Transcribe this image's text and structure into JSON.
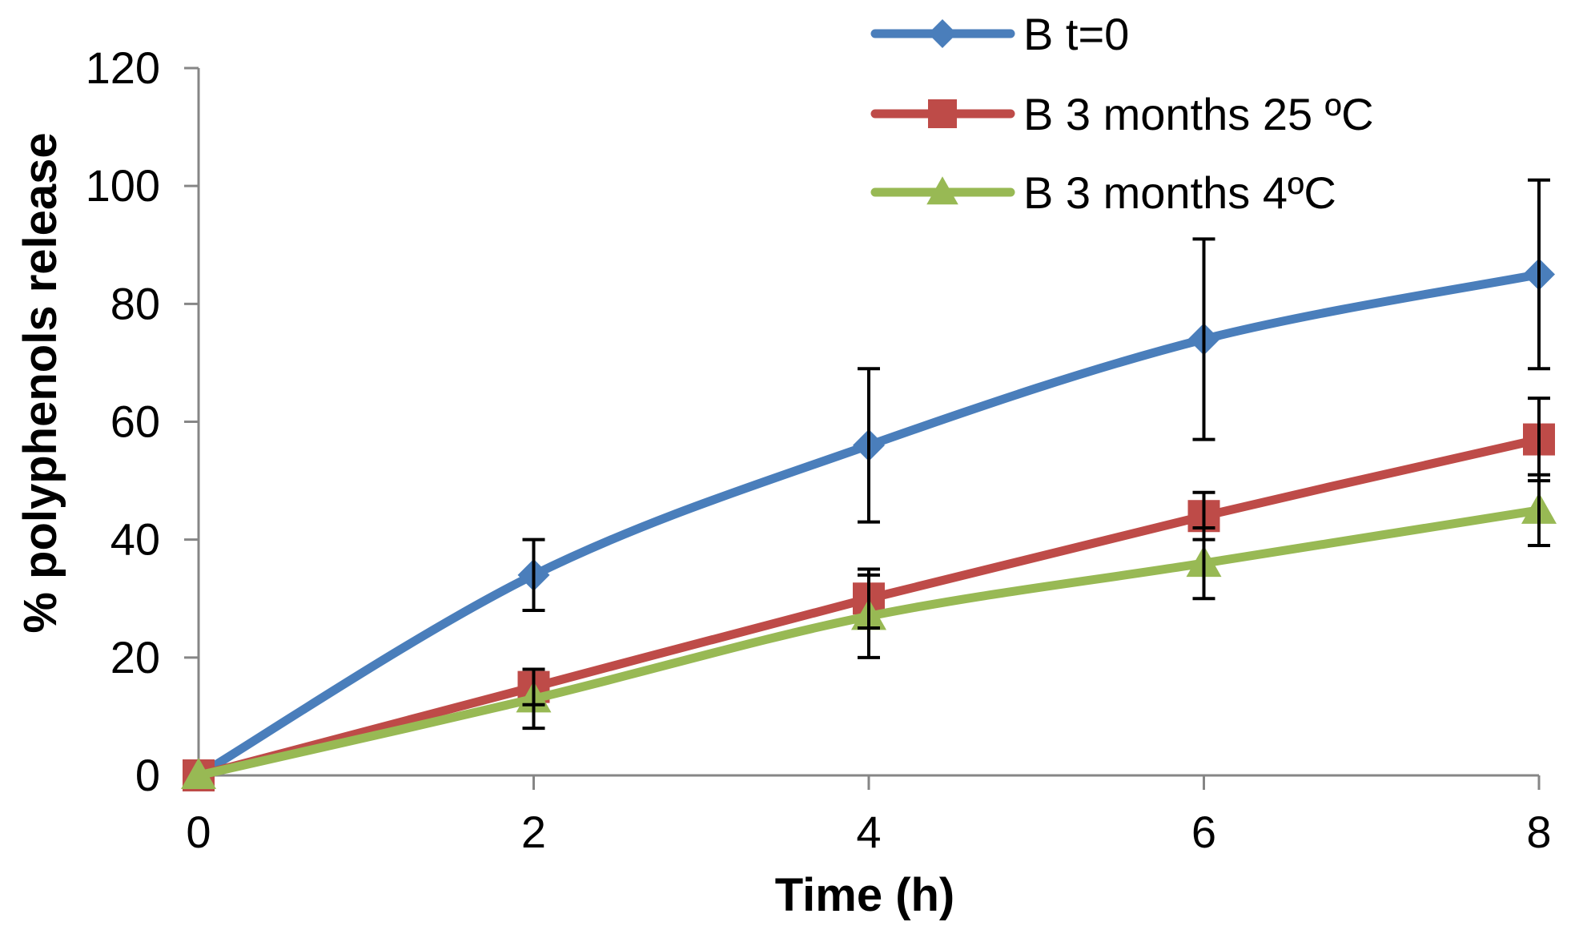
{
  "chart_data": {
    "type": "line",
    "title": "",
    "xlabel": "Time (h)",
    "ylabel": "% polyphenols release",
    "xlim": [
      0,
      8
    ],
    "ylim": [
      0,
      120
    ],
    "x_ticks": [
      "0",
      "2",
      "4",
      "6",
      "8"
    ],
    "y_ticks": [
      "0",
      "20",
      "40",
      "60",
      "80",
      "100",
      "120"
    ],
    "grid": false,
    "legend_position": "top-right",
    "x": [
      0,
      2,
      4,
      6,
      8
    ],
    "series": [
      {
        "name": "B t=0",
        "color": "#4a7ebb",
        "marker": "diamond",
        "values": [
          0,
          34,
          56,
          74,
          85
        ],
        "error": [
          0,
          6,
          13,
          17,
          16
        ]
      },
      {
        "name": "B 3 months 25 ºC",
        "color": "#be4b48",
        "marker": "square",
        "values": [
          0,
          15,
          30,
          44,
          57
        ],
        "error": [
          0,
          3,
          5,
          4,
          7
        ]
      },
      {
        "name": "B  3 months 4ºC",
        "color": "#98b954",
        "marker": "triangle",
        "values": [
          0,
          13,
          27,
          36,
          45
        ],
        "error": [
          0,
          5,
          7,
          6,
          6
        ]
      }
    ]
  }
}
